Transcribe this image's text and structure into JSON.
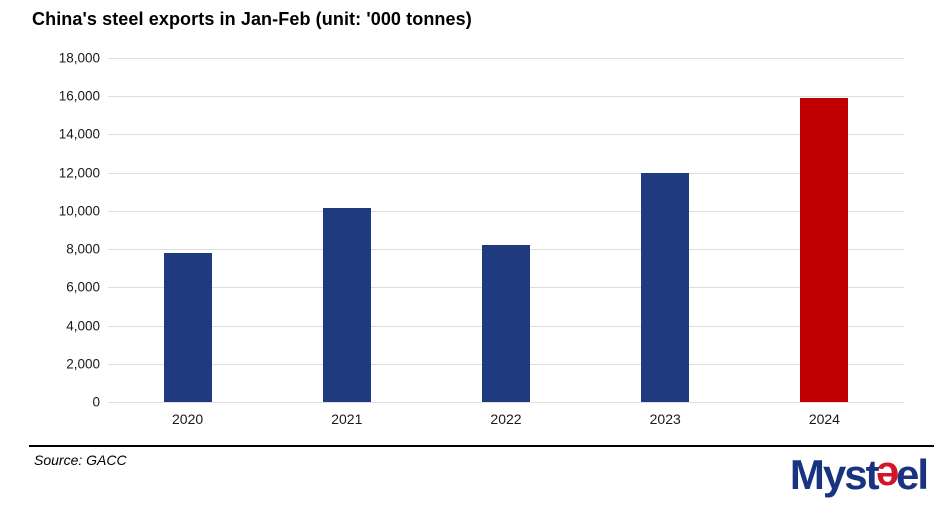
{
  "title": "China's steel exports in Jan-Feb (unit: '000 tonnes)",
  "source_note": "Source: GACC",
  "logo": {
    "part_myst": "Myst",
    "part_e1": "e",
    "part_e2": "e",
    "part_l": "l"
  },
  "colors": {
    "bar_blue": "#203a80",
    "bar_red": "#c00000",
    "gridline": "#dddddd",
    "logo_blue": "#1a3381",
    "logo_red": "#d2152b"
  },
  "chart_data": {
    "type": "bar",
    "categories": [
      "2020",
      "2021",
      "2022",
      "2023",
      "2024"
    ],
    "values": [
      7810,
      10140,
      8230,
      11990,
      15900
    ],
    "highlight_index": 4,
    "title": "China's steel exports in Jan-Feb (unit: '000 tonnes)",
    "xlabel": "",
    "ylabel": "",
    "ylim": [
      0,
      18000
    ],
    "ytick_step": 2000,
    "ytick_labels": [
      "0",
      "2,000",
      "4,000",
      "6,000",
      "8,000",
      "10,000",
      "12,000",
      "14,000",
      "16,000",
      "18,000"
    ],
    "grid": true,
    "legend": false,
    "bar_color_default": "#203a80",
    "bar_color_highlight": "#c00000"
  }
}
